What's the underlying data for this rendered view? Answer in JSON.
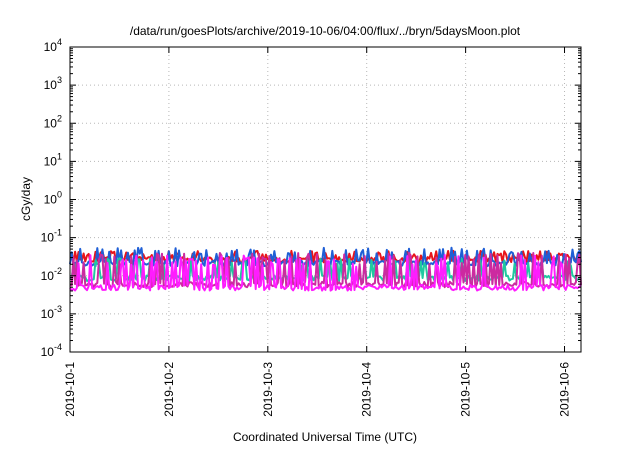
{
  "chart_data": {
    "type": "line",
    "title": "/data/run/goesPlots/archive/2019-10-06/04:00/flux/../bryn/5daysMoon.plot",
    "xlabel": "Coordinated Universal Time (UTC)",
    "ylabel": "cGy/day",
    "y_scale": "log",
    "ylim": [
      0.0001,
      10000
    ],
    "xlim": [
      "2019-10-01T00:00",
      "2019-10-06T04:00"
    ],
    "x_ticks": [
      "2019-10-1",
      "2019-10-2",
      "2019-10-3",
      "2019-10-4",
      "2019-10-5",
      "2019-10-6"
    ],
    "y_ticks": [
      {
        "base": "10",
        "exp": "-4"
      },
      {
        "base": "10",
        "exp": "-3"
      },
      {
        "base": "10",
        "exp": "-2"
      },
      {
        "base": "10",
        "exp": "-1"
      },
      {
        "base": "10",
        "exp": "0"
      },
      {
        "base": "10",
        "exp": "1"
      },
      {
        "base": "10",
        "exp": "2"
      },
      {
        "base": "10",
        "exp": "3"
      },
      {
        "base": "10",
        "exp": "4"
      }
    ],
    "grid": true,
    "legend": "none",
    "series": [
      {
        "color": "#e8141a",
        "baseline": 0.026,
        "spike": 0.045
      },
      {
        "color": "#1f5fd6",
        "baseline": 0.021,
        "spike": 0.055
      },
      {
        "color": "#20c8a0",
        "baseline": 0.0085,
        "spike": 0.03
      },
      {
        "color": "#cc2aa0",
        "baseline": 0.0058,
        "spike": 0.04
      },
      {
        "color": "#ff1cff",
        "baseline": 0.0048,
        "spike": 0.035
      }
    ]
  }
}
